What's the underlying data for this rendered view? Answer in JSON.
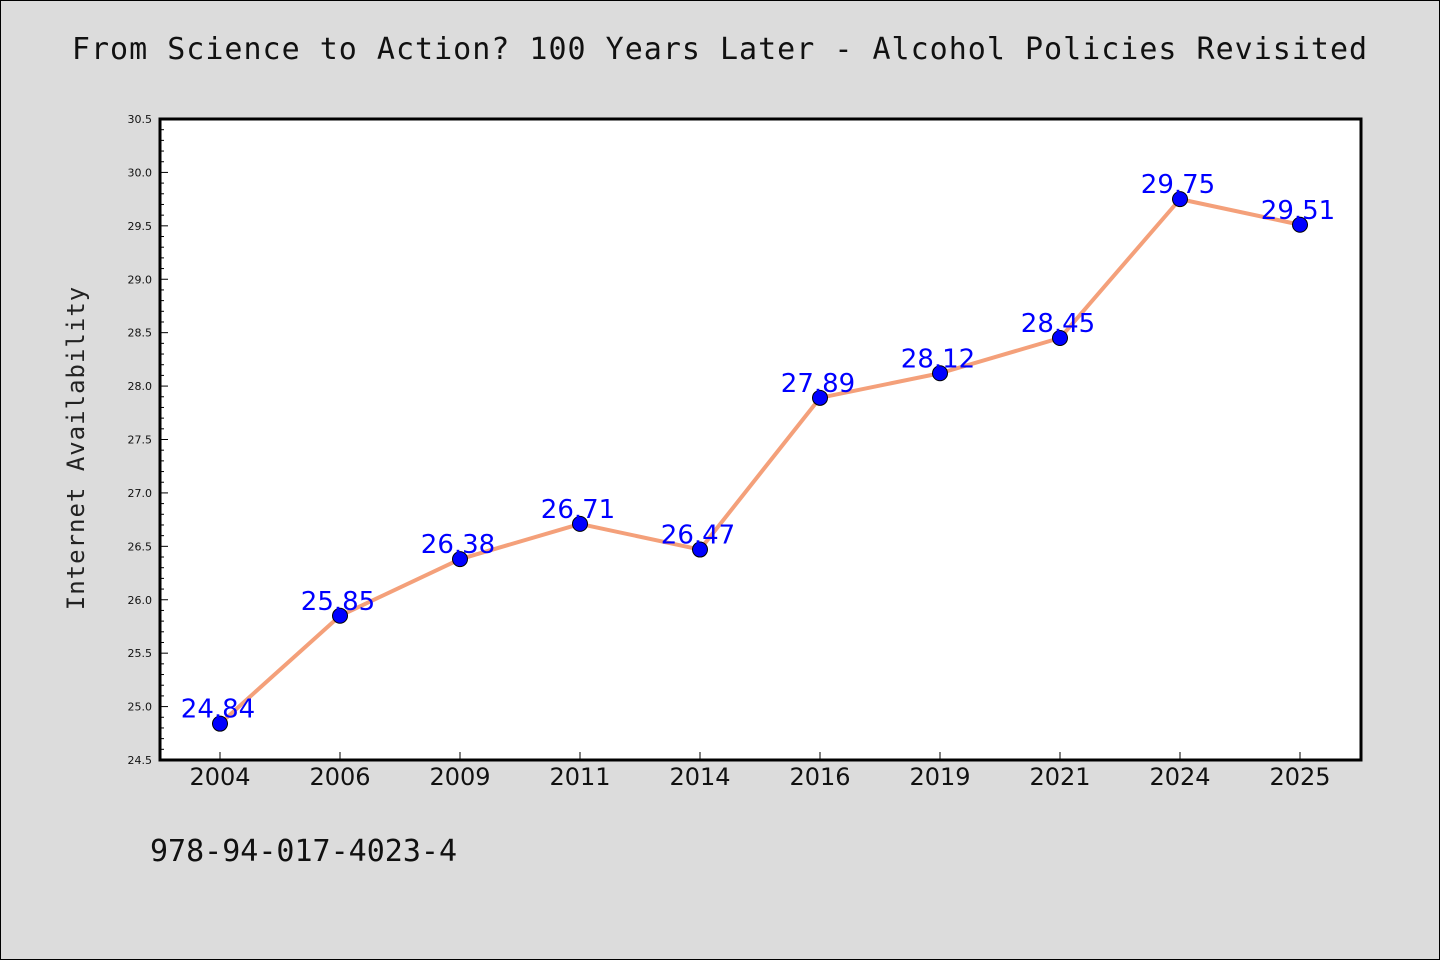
{
  "chart_data": {
    "type": "line",
    "title": "From Science to Action? 100 Years Later - Alcohol Policies Revisited",
    "ylabel": "Internet Availability",
    "xlabel": "",
    "categories": [
      "2004",
      "2006",
      "2009",
      "2011",
      "2014",
      "2016",
      "2019",
      "2021",
      "2024",
      "2025"
    ],
    "series": [
      {
        "values": [
          24.84,
          25.85,
          26.38,
          26.71,
          26.47,
          27.89,
          28.12,
          28.45,
          29.75,
          29.51
        ]
      }
    ],
    "data_labels": [
      "24.84",
      "25.85",
      "26.38",
      "26.71",
      "26.47",
      "27.89",
      "28.12",
      "28.45",
      "29.75",
      "29.51"
    ],
    "ylim": [
      24.5,
      30.5
    ],
    "yticks": [
      "24.5",
      "25.0",
      "25.5",
      "26.0",
      "26.5",
      "27.0",
      "27.5",
      "28.0",
      "28.5",
      "29.0",
      "29.5",
      "30.0",
      "30.5"
    ],
    "grid": false,
    "line_color": "#f4a07a",
    "marker_color": "#0000ff",
    "label_color": "#0000ff"
  },
  "footer": {
    "isbn": "978-94-017-4023-4"
  }
}
